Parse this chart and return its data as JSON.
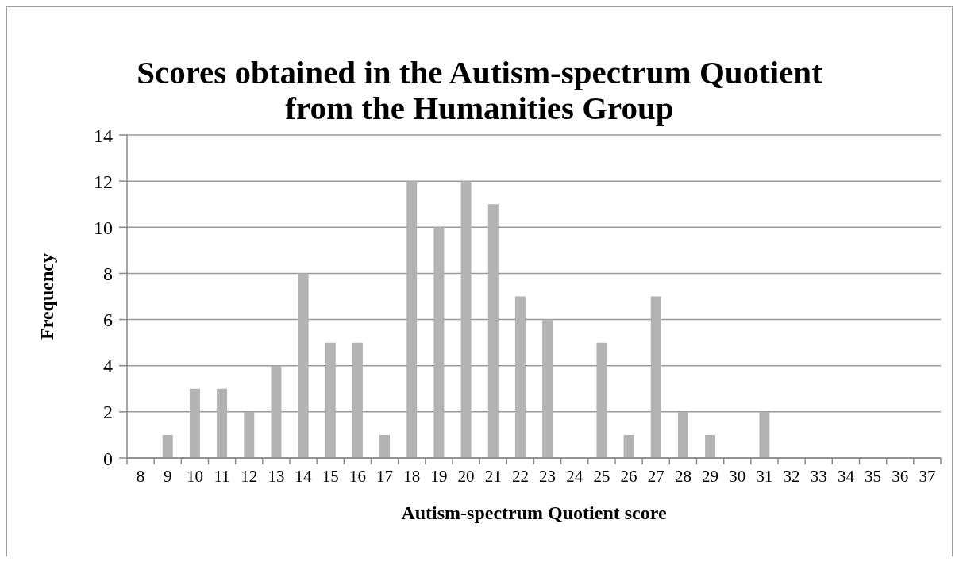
{
  "chart_data": {
    "type": "bar",
    "title": "Scores obtained in the Autism-spectrum Quotient\nfrom the Humanities Group",
    "xlabel": "Autism-spectrum Quotient score",
    "ylabel": "Frequency",
    "categories": [
      "8",
      "9",
      "10",
      "11",
      "12",
      "13",
      "14",
      "15",
      "16",
      "17",
      "18",
      "19",
      "20",
      "21",
      "22",
      "23",
      "24",
      "25",
      "26",
      "27",
      "28",
      "29",
      "30",
      "31",
      "32",
      "33",
      "34",
      "35",
      "36",
      "37"
    ],
    "values": [
      0,
      1,
      3,
      3,
      2,
      4,
      8,
      5,
      5,
      1,
      12,
      10,
      12,
      11,
      7,
      6,
      0,
      5,
      1,
      7,
      2,
      1,
      0,
      2,
      0,
      0,
      0,
      0,
      0,
      0
    ],
    "color": "#b3b3b3",
    "ylim": [
      0,
      14
    ],
    "yticks": [
      0,
      2,
      4,
      6,
      8,
      10,
      12,
      14
    ],
    "grid": "y"
  }
}
